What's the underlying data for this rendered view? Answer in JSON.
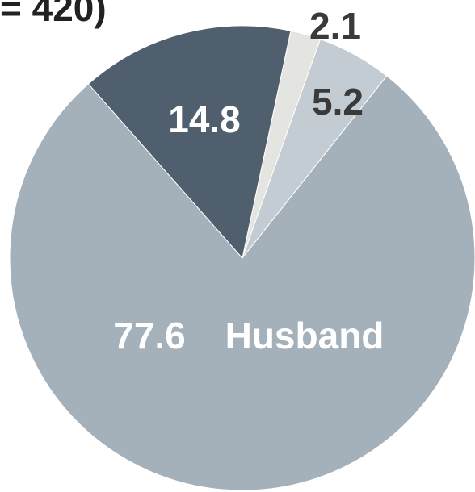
{
  "chart_data": {
    "type": "pie",
    "title": "= 420)",
    "categories": [
      null,
      null,
      "Husband",
      null
    ],
    "values": [
      2.1,
      5.2,
      77.6,
      14.8
    ],
    "colors": [
      "#e4e5e1",
      "#c3ccd3",
      "#a5b1ba",
      "#4f5f6d"
    ],
    "label_colors": [
      "#3a3a3a",
      "#3a3a3a",
      "#ffffff",
      "#ffffff"
    ]
  }
}
